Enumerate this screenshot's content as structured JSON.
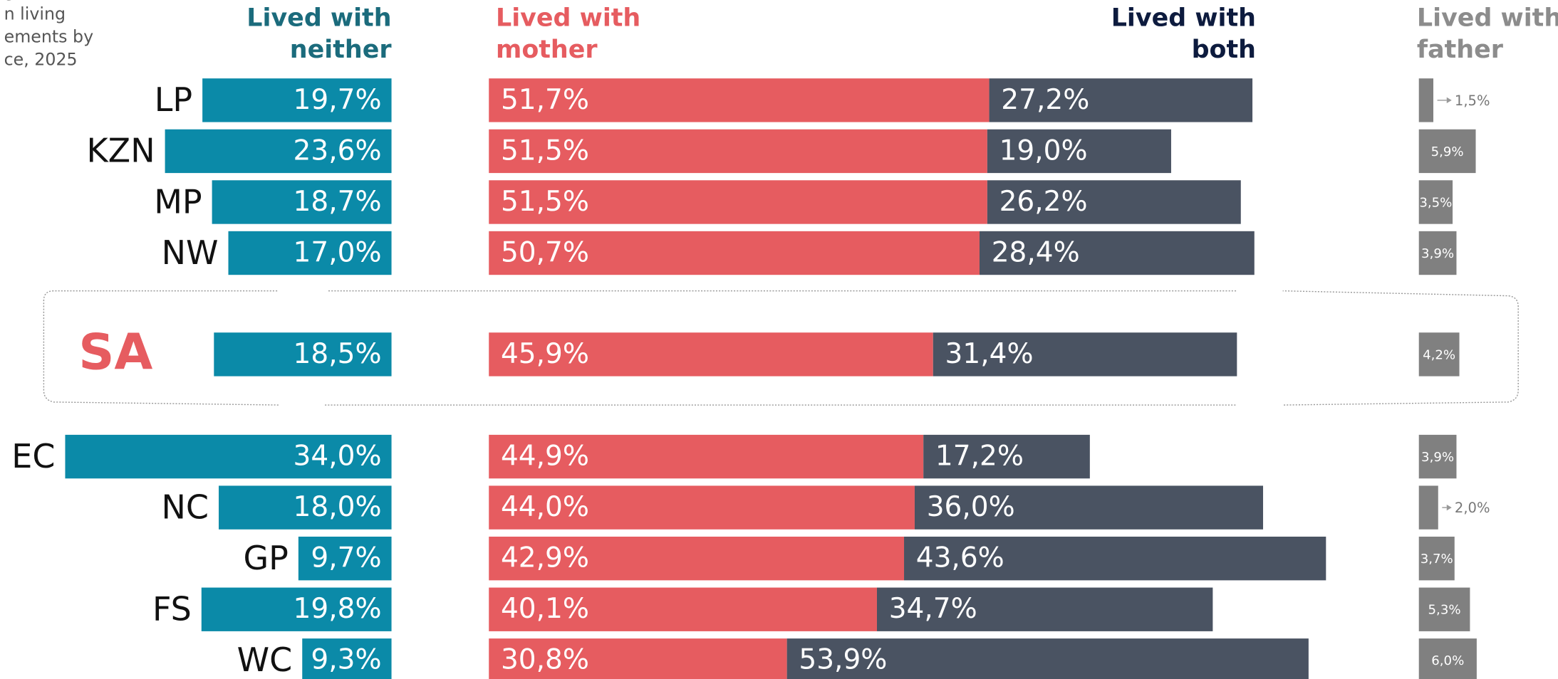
{
  "chart_data": {
    "type": "bar",
    "title": [
      "g",
      "n living",
      "ements by",
      "ce, 2025"
    ],
    "categories": [
      "LP",
      "KZN",
      "MP",
      "NW",
      "SA",
      "EC",
      "NC",
      "GP",
      "FS",
      "WC"
    ],
    "series": [
      {
        "name": [
          "Lived with",
          "neither"
        ],
        "color": "#0b8aa8",
        "header_color": "#1b6b7c",
        "values": [
          19.7,
          23.6,
          18.7,
          17.0,
          18.5,
          34.0,
          18.0,
          9.7,
          19.8,
          9.3
        ],
        "value_labels": [
          "19,7%",
          "23,6%",
          "18,7%",
          "17,0%",
          "18,5%",
          "34,0%",
          "18,0%",
          "9,7%",
          "19,8%",
          "9,3%"
        ]
      },
      {
        "name": [
          "Lived with",
          "mother"
        ],
        "color": "#e65c60",
        "header_color": "#e65c60",
        "values": [
          51.7,
          51.5,
          51.5,
          50.7,
          45.9,
          44.9,
          44.0,
          42.9,
          40.1,
          30.8
        ],
        "value_labels": [
          "51,7%",
          "51,5%",
          "51,5%",
          "50,7%",
          "45,9%",
          "44,9%",
          "44,0%",
          "42,9%",
          "40,1%",
          "30,8%"
        ]
      },
      {
        "name": [
          "Lived with",
          "both"
        ],
        "color": "#4a5362",
        "header_color": "#0d1b3e",
        "values": [
          27.2,
          19.0,
          26.2,
          28.4,
          31.4,
          17.2,
          36.0,
          43.6,
          34.7,
          53.9
        ],
        "value_labels": [
          "27,2%",
          "19,0%",
          "26,2%",
          "28,4%",
          "31,4%",
          "17,2%",
          "36,0%",
          "43,6%",
          "34,7%",
          "53,9%"
        ]
      },
      {
        "name": [
          "Lived with",
          "father"
        ],
        "color": "#808080",
        "header_color": "#8c8c8c",
        "values": [
          1.5,
          5.9,
          3.5,
          3.9,
          4.2,
          3.9,
          2.0,
          3.7,
          5.3,
          6.0
        ],
        "value_labels": [
          "1,5%",
          "5,9%",
          "3,5%",
          "3,9%",
          "4,2%",
          "3,9%",
          "2,0%",
          "3,7%",
          "5,3%",
          "6,0%"
        ]
      }
    ]
  }
}
